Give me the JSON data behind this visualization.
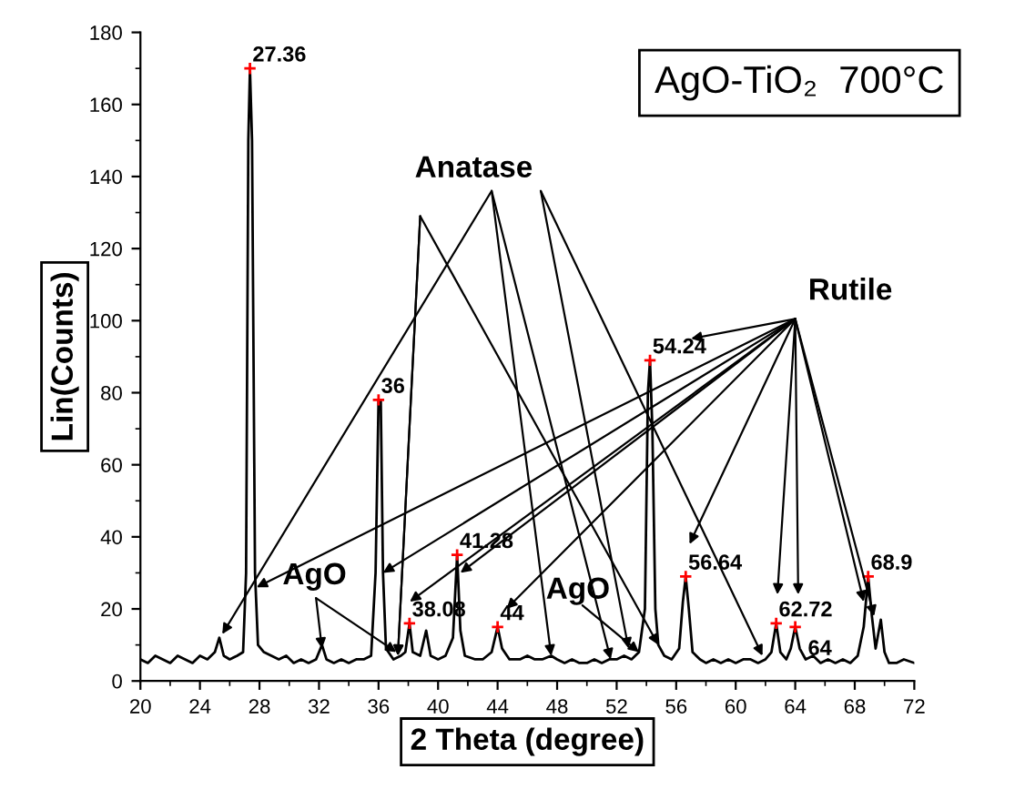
{
  "chart_data": {
    "type": "line",
    "title": "AgO-TiO₂  700°C",
    "xlabel": "2 Theta (degree)",
    "ylabel": "Lin(Counts)",
    "xlim": [
      20,
      72
    ],
    "xticks": [
      20,
      24,
      28,
      32,
      36,
      40,
      44,
      48,
      52,
      56,
      60,
      64,
      68,
      72
    ],
    "ylim": [
      0,
      180
    ],
    "yticks": [
      0,
      20,
      40,
      60,
      80,
      100,
      120,
      140,
      160,
      180
    ],
    "grid": false,
    "legend": false,
    "series": [
      {
        "color": "#000000",
        "x": [
          20,
          20.5,
          21,
          21.5,
          22,
          22.5,
          23,
          23.5,
          24,
          24.5,
          25,
          25.3,
          25.6,
          26,
          26.5,
          26.9,
          27.1,
          27.25,
          27.36,
          27.5,
          27.7,
          27.9,
          28.3,
          28.8,
          29.3,
          29.8,
          30.3,
          30.8,
          31.3,
          31.8,
          32.2,
          32.5,
          33,
          33.5,
          34,
          34.5,
          35,
          35.5,
          35.8,
          36,
          36.15,
          36.3,
          36.5,
          37,
          37.5,
          37.8,
          38.08,
          38.3,
          38.8,
          39.2,
          39.5,
          40,
          40.5,
          41,
          41.28,
          41.5,
          41.8,
          42.5,
          43,
          43.6,
          44,
          44.3,
          44.8,
          45.5,
          46,
          46.5,
          47,
          47.6,
          48,
          48.5,
          49,
          49.5,
          50,
          50.5,
          51,
          51.5,
          52,
          52.5,
          53,
          53.5,
          53.9,
          54.1,
          54.24,
          54.4,
          54.6,
          54.8,
          55.2,
          55.7,
          56.2,
          56.45,
          56.64,
          56.85,
          57.1,
          57.6,
          58,
          58.5,
          59,
          59.5,
          60,
          60.5,
          61,
          61.5,
          62,
          62.4,
          62.72,
          63,
          63.4,
          63.7,
          64,
          64.3,
          64.7,
          65.2,
          65.7,
          66.2,
          66.7,
          67.2,
          67.7,
          68.2,
          68.6,
          68.9,
          69.15,
          69.4,
          69.75,
          70,
          70.3,
          70.8,
          71.3,
          72
        ],
        "values": [
          6,
          5,
          7,
          6,
          5,
          7,
          6,
          5,
          7,
          6,
          8,
          12,
          7,
          6,
          7,
          8,
          30,
          150,
          170,
          150,
          30,
          10,
          8,
          7,
          6,
          7,
          5,
          6,
          5,
          6,
          10,
          6,
          5,
          6,
          5,
          6,
          6,
          7,
          30,
          78,
          78,
          30,
          9,
          6,
          7,
          8,
          16,
          8,
          7,
          14,
          7,
          6,
          7,
          12,
          35,
          14,
          7,
          6,
          6,
          8,
          15,
          9,
          6,
          6,
          7,
          6,
          6,
          7,
          6,
          5,
          6,
          5,
          5,
          6,
          5,
          6,
          6,
          7,
          6,
          8,
          20,
          80,
          89,
          70,
          20,
          10,
          7,
          6,
          9,
          22,
          29,
          20,
          8,
          6,
          5,
          6,
          5,
          6,
          5,
          6,
          6,
          5,
          6,
          8,
          16,
          8,
          6,
          9,
          15,
          9,
          6,
          7,
          5,
          6,
          5,
          6,
          5,
          7,
          15,
          29,
          18,
          9,
          17,
          8,
          5,
          5,
          6,
          5
        ]
      },
      {
        "type": "scatter",
        "color": "#ff0000",
        "marker": "cross",
        "x": [
          27.36,
          36,
          38.08,
          41.28,
          44,
          54.24,
          56.64,
          62.72,
          64,
          68.9
        ],
        "values": [
          170,
          78,
          16,
          35,
          15,
          89,
          29,
          16,
          15,
          29
        ]
      }
    ],
    "annotations": [
      {
        "text": "27.36",
        "x": 27.36,
        "y": 170
      },
      {
        "text": "36",
        "x": 36,
        "y": 78
      },
      {
        "text": "38.08",
        "x": 38.08,
        "y": 16
      },
      {
        "text": "41.28",
        "x": 41.28,
        "y": 35
      },
      {
        "text": "44",
        "x": 44,
        "y": 15
      },
      {
        "text": "54.24",
        "x": 54.24,
        "y": 89
      },
      {
        "text": "56.64",
        "x": 56.64,
        "y": 29
      },
      {
        "text": "62.72",
        "x": 62.72,
        "y": 16
      },
      {
        "text": "64",
        "x": 64,
        "y": 15
      },
      {
        "text": "68.9",
        "x": 68.9,
        "y": 29
      },
      {
        "text": "Anatase",
        "x": 25.5,
        "y": 13
      },
      {
        "text": "Rutile",
        "x": 27.8,
        "y": 26
      },
      {
        "text": "AgO",
        "x": 32.2,
        "y": 9
      },
      {
        "text": "AgO",
        "x": 53.5,
        "y": 8
      }
    ]
  }
}
